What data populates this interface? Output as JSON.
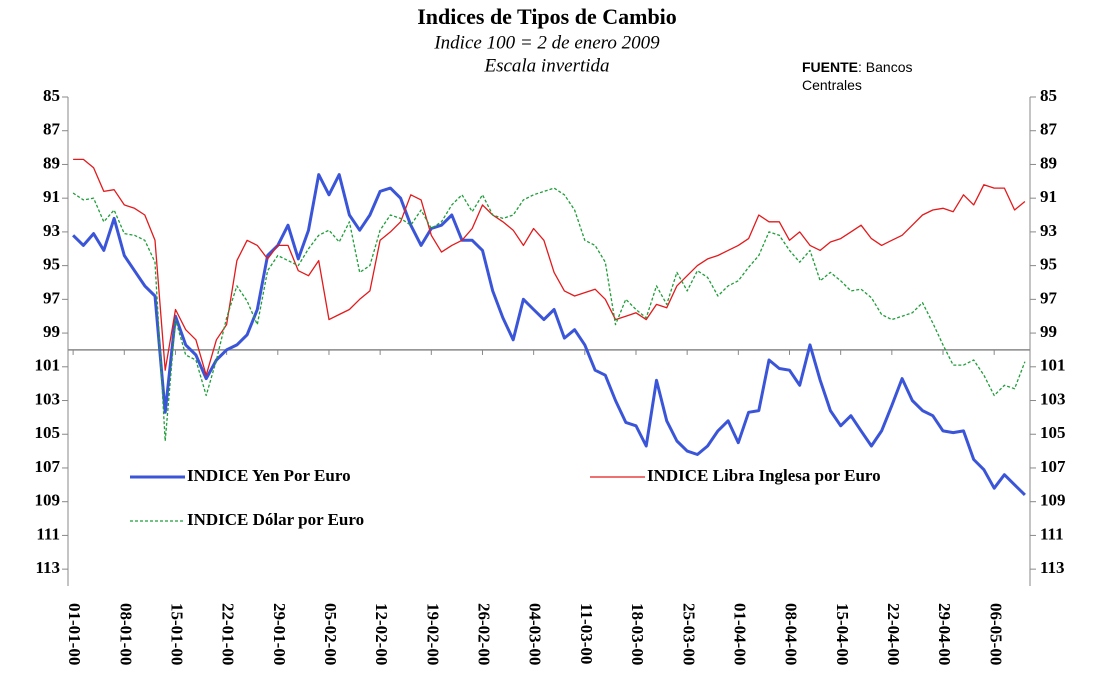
{
  "chart_data": {
    "type": "line",
    "title": "Indices de Tipos de Cambio",
    "subtitle": "Indice 100 = 2 de enero 2009",
    "subtitle2": "Escala invertida",
    "source_label": "FUENTE",
    "source_text": ": Bancos Centrales",
    "y_inverted": true,
    "x_axis_at": 100,
    "legend": "inside",
    "ylim": [
      85,
      114
    ],
    "yticks": [
      85,
      87,
      89,
      91,
      93,
      95,
      97,
      99,
      101,
      103,
      105,
      107,
      109,
      111,
      113
    ],
    "y2lim": [
      85,
      114
    ],
    "y2ticks": [
      85,
      87,
      89,
      91,
      93,
      95,
      97,
      99,
      101,
      103,
      105,
      107,
      109,
      111,
      113
    ],
    "categories": [
      "01-01-00",
      null,
      null,
      null,
      null,
      "08-01-00",
      null,
      null,
      null,
      null,
      "15-01-00",
      null,
      null,
      null,
      null,
      "22-01-00",
      null,
      null,
      null,
      null,
      "29-01-00",
      null,
      null,
      null,
      null,
      "05-02-00",
      null,
      null,
      null,
      null,
      "12-02-00",
      null,
      null,
      null,
      null,
      "19-02-00",
      null,
      null,
      null,
      null,
      "26-02-00",
      null,
      null,
      null,
      null,
      "04-03-00",
      null,
      null,
      null,
      null,
      "11-03-00",
      null,
      null,
      null,
      null,
      "18-03-00",
      null,
      null,
      null,
      null,
      "25-03-00",
      null,
      null,
      null,
      null,
      "01-04-00",
      null,
      null,
      null,
      null,
      "08-04-00",
      null,
      null,
      null,
      null,
      "15-04-00",
      null,
      null,
      null,
      null,
      "22-04-00",
      null,
      null,
      null,
      null,
      "29-04-00",
      null,
      null,
      null,
      null,
      "06-05-00",
      null,
      null,
      null
    ],
    "series": [
      {
        "name": "INDICE Yen Por Euro",
        "color": "#3b55d9",
        "width": 3,
        "dash": "none",
        "values": [
          93.2,
          93.8,
          93.1,
          94.1,
          92.2,
          94.4,
          95.3,
          96.2,
          96.8,
          103.7,
          98,
          99.7,
          100.3,
          101.7,
          100.6,
          100,
          99.7,
          99.1,
          97.6,
          94.4,
          93.8,
          92.6,
          94.6,
          92.9,
          89.6,
          90.8,
          89.6,
          92,
          92.9,
          92,
          90.6,
          90.4,
          91,
          92.6,
          93.8,
          92.8,
          92.6,
          92,
          93.5,
          93.5,
          94.1,
          96.5,
          98.1,
          99.4,
          97,
          97.6,
          98.2,
          97.6,
          99.3,
          98.8,
          99.7,
          101.2,
          101.5,
          103,
          104.3,
          104.5,
          105.7,
          101.8,
          104.2,
          105.4,
          106,
          106.2,
          105.7,
          104.8,
          104.2,
          105.5,
          103.7,
          103.6,
          100.6,
          101.1,
          101.2,
          102.1,
          99.7,
          101.8,
          103.6,
          104.5,
          103.9,
          104.8,
          105.7,
          104.8,
          103.3,
          101.7,
          103,
          103.6,
          103.9,
          104.8,
          104.9,
          104.8,
          106.5,
          107.1,
          108.2,
          107.4,
          108,
          108.6
        ]
      },
      {
        "name": "INDICE Libra Inglesa por Euro",
        "color": "#e31a1c",
        "width": 1.3,
        "dash": "none",
        "values": [
          88.7,
          88.7,
          89.2,
          90.6,
          90.5,
          91.4,
          91.6,
          92,
          93.5,
          101.2,
          97.6,
          98.8,
          99.4,
          101.5,
          99.4,
          98.5,
          94.7,
          93.5,
          93.8,
          94.6,
          93.8,
          93.8,
          95.3,
          95.6,
          94.7,
          98.2,
          97.9,
          97.6,
          97,
          96.5,
          93.5,
          93,
          92.4,
          90.8,
          91.1,
          93.2,
          94.2,
          93.8,
          93.5,
          92.8,
          91.4,
          92,
          92.4,
          92.9,
          93.8,
          92.8,
          93.5,
          95.4,
          96.5,
          96.8,
          96.6,
          96.4,
          97,
          98.2,
          98,
          97.8,
          98.2,
          97.3,
          97.5,
          96.2,
          95.6,
          95,
          94.6,
          94.4,
          94.1,
          93.8,
          93.4,
          92,
          92.4,
          92.4,
          93.5,
          93,
          93.8,
          94.1,
          93.6,
          93.4,
          93,
          92.6,
          93.4,
          93.8,
          93.5,
          93.2,
          92.6,
          92,
          91.7,
          91.6,
          91.8,
          90.8,
          91.4,
          90.2,
          90.4,
          90.4,
          91.7,
          91.2
        ]
      },
      {
        "name": "INDICE Dólar por Euro",
        "color": "#1f9e3a",
        "width": 1.3,
        "dash": "3,2",
        "values": [
          90.7,
          91.1,
          91,
          92.4,
          91.7,
          93.1,
          93.2,
          93.5,
          94.8,
          105.4,
          98.2,
          100.3,
          100.6,
          102.7,
          100.6,
          98.1,
          96.2,
          97.1,
          98.5,
          95.3,
          94.4,
          94.7,
          95,
          94,
          93.2,
          92.9,
          93.6,
          92.4,
          95.4,
          95,
          92.9,
          92,
          92.2,
          92.6,
          91.7,
          92.8,
          92.4,
          91.4,
          90.8,
          91.8,
          90.8,
          92,
          92.2,
          92,
          91.1,
          90.8,
          90.6,
          90.4,
          90.8,
          91.7,
          93.5,
          93.8,
          94.8,
          98.5,
          97,
          97.6,
          98.1,
          96.2,
          97.3,
          95.4,
          96.5,
          95.3,
          95.7,
          96.8,
          96.2,
          95.9,
          95.1,
          94.4,
          93,
          93.2,
          94.1,
          94.8,
          94.1,
          95.9,
          95.4,
          95.9,
          96.5,
          96.4,
          96.9,
          97.9,
          98.2,
          98,
          97.8,
          97.2,
          98.4,
          99.7,
          100.9,
          100.9,
          100.6,
          101.5,
          102.7,
          102.1,
          102.3,
          100.7
        ]
      }
    ]
  }
}
